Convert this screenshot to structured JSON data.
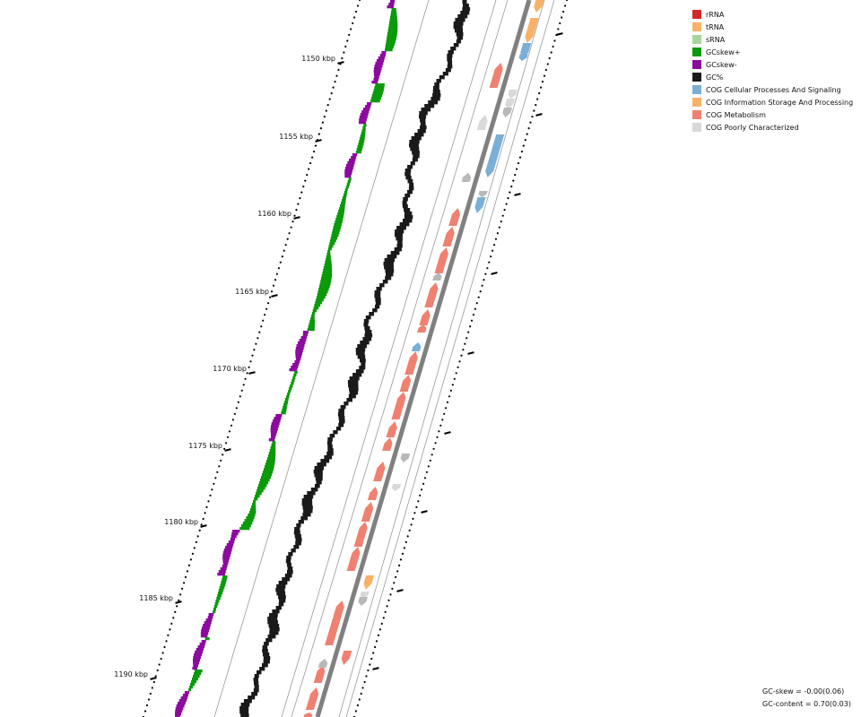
{
  "legend": [
    {
      "label": "rRNA",
      "color": "#d62728",
      "icon": "legend-swatch"
    },
    {
      "label": "tRNA",
      "color": "#f7b267",
      "icon": "legend-swatch"
    },
    {
      "label": "sRNA",
      "color": "#a6d79a",
      "icon": "legend-swatch"
    },
    {
      "label": "GCskew+",
      "color": "#0a9a0a",
      "icon": "legend-swatch"
    },
    {
      "label": "GCskew-",
      "color": "#8c0a9e",
      "icon": "legend-swatch"
    },
    {
      "label": "GC%",
      "color": "#1a1a1a",
      "icon": "legend-swatch"
    },
    {
      "label": "COG Cellular Processes And Signaling",
      "color": "#7aafd6",
      "icon": "legend-swatch"
    },
    {
      "label": "COG Information Storage And Processing",
      "color": "#f7b267",
      "icon": "legend-swatch"
    },
    {
      "label": "COG Metabolism",
      "color": "#f08070",
      "icon": "legend-swatch"
    },
    {
      "label": "COG Poorly Characterized",
      "color": "#d9d9d9",
      "icon": "legend-swatch"
    }
  ],
  "axis": {
    "unit": "kbp",
    "ticks": [
      "1150 kbp",
      "1155 kbp",
      "1160 kbp",
      "1165 kbp",
      "1170 kbp",
      "1175 kbp",
      "1180 kbp",
      "1185 kbp",
      "1190 kbp"
    ]
  },
  "stats": {
    "gc_skew": "GC-skew = -0.00(0.06)",
    "gc_content": "GC-content = 0.70(0.03)"
  },
  "colors": {
    "gc_content": "#1a1a1a",
    "skew_pos": "#0a9a0a",
    "skew_neg": "#8c0a9e",
    "backbone": "#808080",
    "cog_metabolism": "#f08070",
    "cog_cellular": "#7aafd6",
    "cog_info": "#f7b267",
    "cog_poor": "#d9d9d9",
    "small_feature": "#b8b8b8"
  }
}
